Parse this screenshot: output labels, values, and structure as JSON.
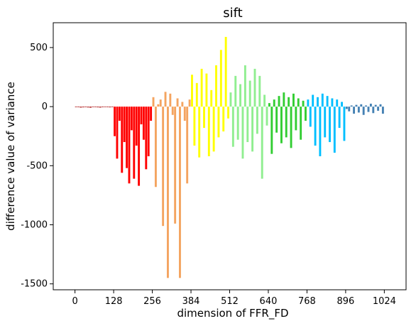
{
  "chart_data": {
    "type": "bar",
    "title": "sift",
    "xlabel": "dimension of FFR_FD",
    "ylabel": "difference value of variance",
    "xlim": [
      -72,
      1096
    ],
    "ylim": [
      -1550,
      710
    ],
    "xticks": [
      0,
      128,
      256,
      384,
      512,
      640,
      768,
      896,
      1024
    ],
    "yticks": [
      -1500,
      -1000,
      -500,
      0,
      500
    ],
    "ytick_labels": [
      "-1500",
      "-1000",
      "-500",
      "0",
      "500"
    ],
    "grid": false,
    "legend": "none",
    "series": [
      {
        "range": [
          0,
          127
        ],
        "color": "#b22222",
        "values_sample": [
          -5,
          -4,
          -8,
          -6,
          -3,
          -7,
          -9,
          -5,
          -4,
          -6,
          -8,
          -5,
          -3,
          -4,
          -6,
          -5
        ]
      },
      {
        "range": [
          128,
          255
        ],
        "color": "#ff0000",
        "values_sample": [
          -250,
          -440,
          -120,
          -560,
          -300,
          -520,
          -650,
          -200,
          -610,
          -330,
          -670,
          -150,
          -280,
          -530,
          -420,
          -120
        ]
      },
      {
        "range": [
          256,
          383
        ],
        "color": "#f4a460",
        "values_sample": [
          80,
          -680,
          20,
          60,
          -1010,
          125,
          -1450,
          110,
          -70,
          -990,
          70,
          -1450,
          40,
          -120,
          -650,
          60
        ]
      },
      {
        "range": [
          384,
          511
        ],
        "color": "#ffff00",
        "values_sample": [
          270,
          -330,
          200,
          -430,
          320,
          -180,
          280,
          -420,
          140,
          -380,
          350,
          -260,
          480,
          -210,
          590,
          -100
        ]
      },
      {
        "range": [
          512,
          639
        ],
        "color": "#90ee90",
        "values_sample": [
          120,
          -340,
          260,
          -280,
          190,
          -440,
          350,
          -300,
          220,
          -380,
          320,
          -230,
          260,
          -610,
          100,
          -160
        ]
      },
      {
        "range": [
          640,
          767
        ],
        "color": "#32cd32",
        "values_sample": [
          30,
          -400,
          60,
          -220,
          90,
          -310,
          120,
          -260,
          80,
          -350,
          110,
          -200,
          70,
          -280,
          50,
          -120
        ]
      },
      {
        "range": [
          768,
          895
        ],
        "color": "#00bfff",
        "values_sample": [
          60,
          -170,
          100,
          -330,
          80,
          -420,
          110,
          -260,
          90,
          -300,
          70,
          -390,
          60,
          -180,
          40,
          -290
        ]
      },
      {
        "range": [
          896,
          1023
        ],
        "color": "#4682b4",
        "values_sample": [
          -20,
          -40,
          10,
          -60,
          15,
          -50,
          20,
          -70,
          10,
          -45,
          25,
          -55,
          15,
          -35,
          20,
          -60
        ]
      }
    ]
  }
}
